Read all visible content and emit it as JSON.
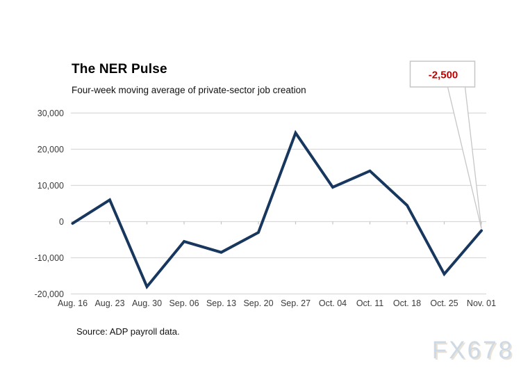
{
  "header": {
    "title": "The NER Pulse",
    "subtitle": "Four-week moving average of private-sector job creation"
  },
  "chart_data": {
    "type": "line",
    "title": "The NER Pulse",
    "subtitle": "Four-week moving average of private-sector job creation",
    "categories": [
      "Aug. 16",
      "Aug. 23",
      "Aug. 30",
      "Sep. 06",
      "Sep. 13",
      "Sep. 20",
      "Sep. 27",
      "Oct. 04",
      "Oct. 11",
      "Oct. 18",
      "Oct. 25",
      "Nov. 01"
    ],
    "series": [
      {
        "name": "Four-week moving average of private-sector job creation",
        "values": [
          -500,
          6000,
          -18000,
          -5500,
          -8500,
          -3000,
          24500,
          9500,
          14000,
          4500,
          -14500,
          -2500
        ]
      }
    ],
    "y_ticks": [
      30000,
      20000,
      10000,
      0,
      -10000,
      -20000
    ],
    "y_tick_labels": [
      "30,000",
      "20,000",
      "10,000",
      "0",
      "-10,000",
      "-20,000"
    ],
    "ylim": [
      -20000,
      30000
    ],
    "grid": "horizontal",
    "legend": "none",
    "annotation": {
      "label": "-2,500",
      "value": -2500,
      "target_category": "Nov. 01"
    }
  },
  "source": {
    "text": "Source: ADP payroll data."
  },
  "watermark": {
    "text": "FX678"
  },
  "colors": {
    "line": "#17375e",
    "grid": "#d9d9d9",
    "tick": "#c3c3c3",
    "axis_text": "#3a3a3a",
    "annotation_text": "#c00000",
    "callout_border": "#c6c6c6",
    "background": "#ffffff"
  }
}
